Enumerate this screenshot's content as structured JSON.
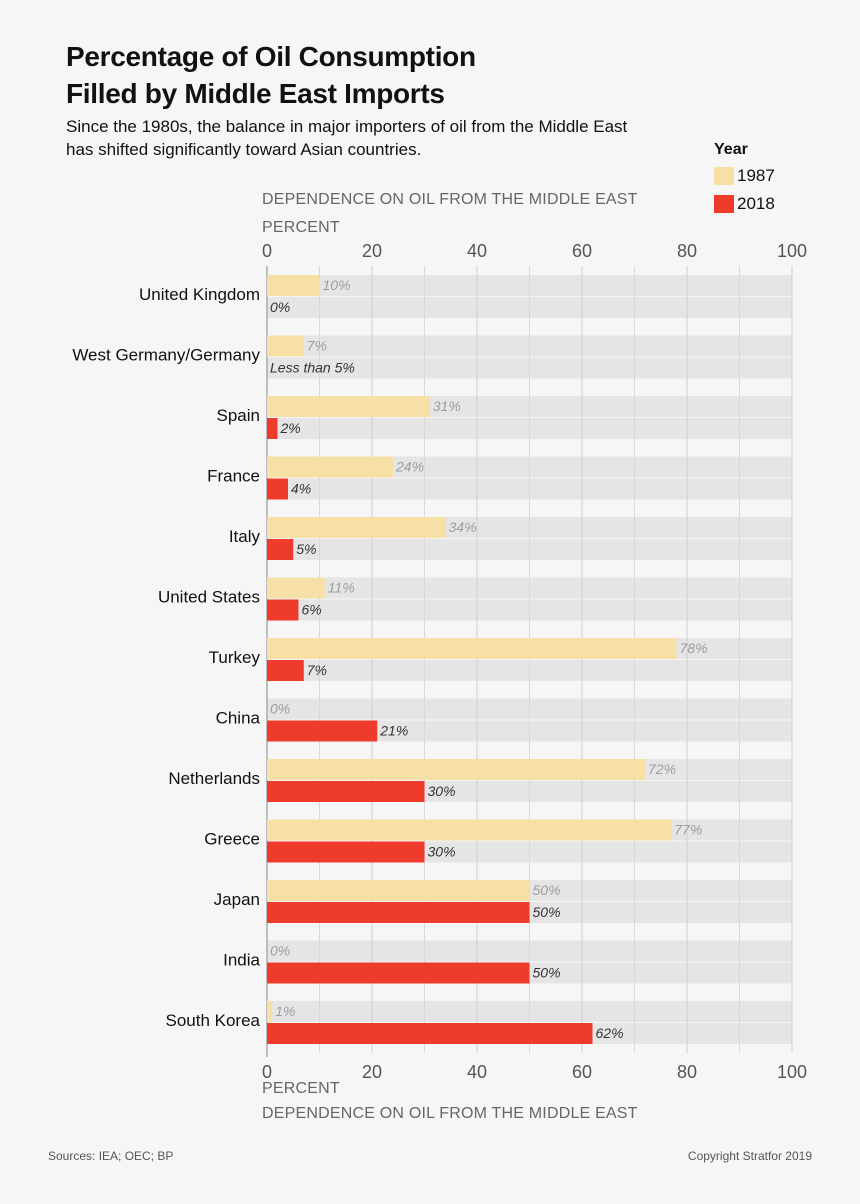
{
  "title": {
    "line1": "Percentage of Oil Consumption",
    "line2": "Filled by Middle East Imports"
  },
  "subtitle": {
    "line1": "Since the 1980s, the balance in major importers of oil from the Middle East",
    "line2": "has shifted significantly toward Asian countries."
  },
  "legend": {
    "title": "Year",
    "items": [
      {
        "label": "1987",
        "color": "#f6e0a6"
      },
      {
        "label": "2018",
        "color": "#ef3b2c"
      }
    ]
  },
  "axis": {
    "title_top": "DEPENDENCE ON OIL FROM THE MIDDLE EAST",
    "unit_top": "PERCENT",
    "unit_bottom": "PERCENT",
    "title_bottom": "DEPENDENCE ON OIL FROM THE MIDDLE EAST"
  },
  "chart_data": {
    "type": "bar",
    "orientation": "horizontal",
    "xlabel": "DEPENDENCE ON OIL FROM THE MIDDLE EAST (PERCENT)",
    "xlim": [
      0,
      100
    ],
    "ticks": [
      0,
      20,
      40,
      60,
      80,
      100
    ],
    "grid": true,
    "categories": [
      "United Kingdom",
      "West Germany/Germany",
      "Spain",
      "France",
      "Italy",
      "United States",
      "Turkey",
      "China",
      "Netherlands",
      "Greece",
      "Japan",
      "India",
      "South Korea"
    ],
    "series": [
      {
        "name": "1987",
        "color": "#f6e0a6",
        "label_color": "#9d9d9d",
        "values": [
          10,
          7,
          31,
          24,
          34,
          11,
          78,
          0,
          72,
          77,
          50,
          0,
          1
        ],
        "labels": [
          "10%",
          "7%",
          "31%",
          "24%",
          "34%",
          "11%",
          "78%",
          "0%",
          "72%",
          "77%",
          "50%",
          "0%",
          "1%"
        ]
      },
      {
        "name": "2018",
        "color": "#ef3b2c",
        "label_color": "#333333",
        "values": [
          0,
          0,
          2,
          4,
          5,
          6,
          7,
          21,
          30,
          30,
          50,
          50,
          62
        ],
        "labels": [
          "0%",
          "Less than 5%",
          "2%",
          "4%",
          "5%",
          "6%",
          "7%",
          "21%",
          "30%",
          "30%",
          "50%",
          "50%",
          "62%"
        ]
      }
    ]
  },
  "footer": {
    "sources": "Sources: IEA; OEC; BP",
    "copyright": "Copyright Stratfor 2019"
  }
}
